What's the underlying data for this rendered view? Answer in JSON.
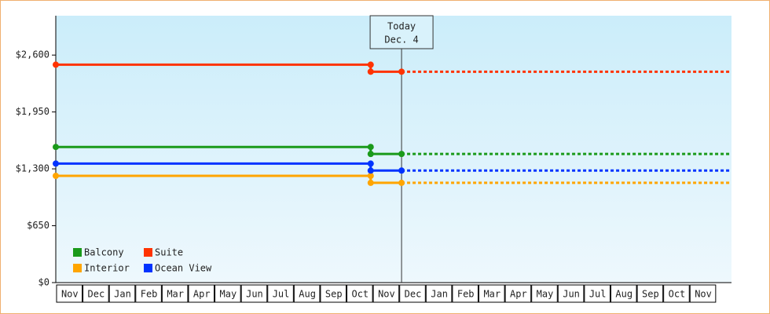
{
  "chart_data": {
    "type": "line",
    "categories": [
      "Nov",
      "Dec",
      "Jan",
      "Feb",
      "Mar",
      "Apr",
      "May",
      "Jun",
      "Jul",
      "Aug",
      "Sep",
      "Oct",
      "Nov",
      "Dec",
      "Jan",
      "Feb",
      "Mar",
      "Apr",
      "May",
      "Jun",
      "Jul",
      "Aug",
      "Sep",
      "Oct",
      "Nov"
    ],
    "x": [
      0,
      11.93,
      11.93,
      13.1,
      25.6
    ],
    "xlim": [
      0,
      25.6
    ],
    "ylim": [
      0,
      3050
    ],
    "yticks": [
      {
        "value": 0,
        "label": "$0"
      },
      {
        "value": 650,
        "label": "$650"
      },
      {
        "value": 1300,
        "label": "$1,300"
      },
      {
        "value": 1950,
        "label": "$1,950"
      },
      {
        "value": 2600,
        "label": "$2,600"
      }
    ],
    "today": {
      "x": 13.1,
      "label": [
        "Today",
        "Dec. 4"
      ]
    },
    "legend": "bottom-left",
    "series": [
      {
        "name": "Balcony",
        "color": "#1a9a1a",
        "values": [
          1550,
          1550,
          1470,
          1470,
          1470
        ]
      },
      {
        "name": "Suite",
        "color": "#ff3300",
        "values": [
          2490,
          2490,
          2410,
          2410,
          2410
        ]
      },
      {
        "name": "Interior",
        "color": "#ffa500",
        "values": [
          1220,
          1220,
          1140,
          1140,
          1140
        ]
      },
      {
        "name": "Ocean View",
        "color": "#0033ff",
        "values": [
          1360,
          1360,
          1280,
          1280,
          1280
        ]
      }
    ]
  }
}
